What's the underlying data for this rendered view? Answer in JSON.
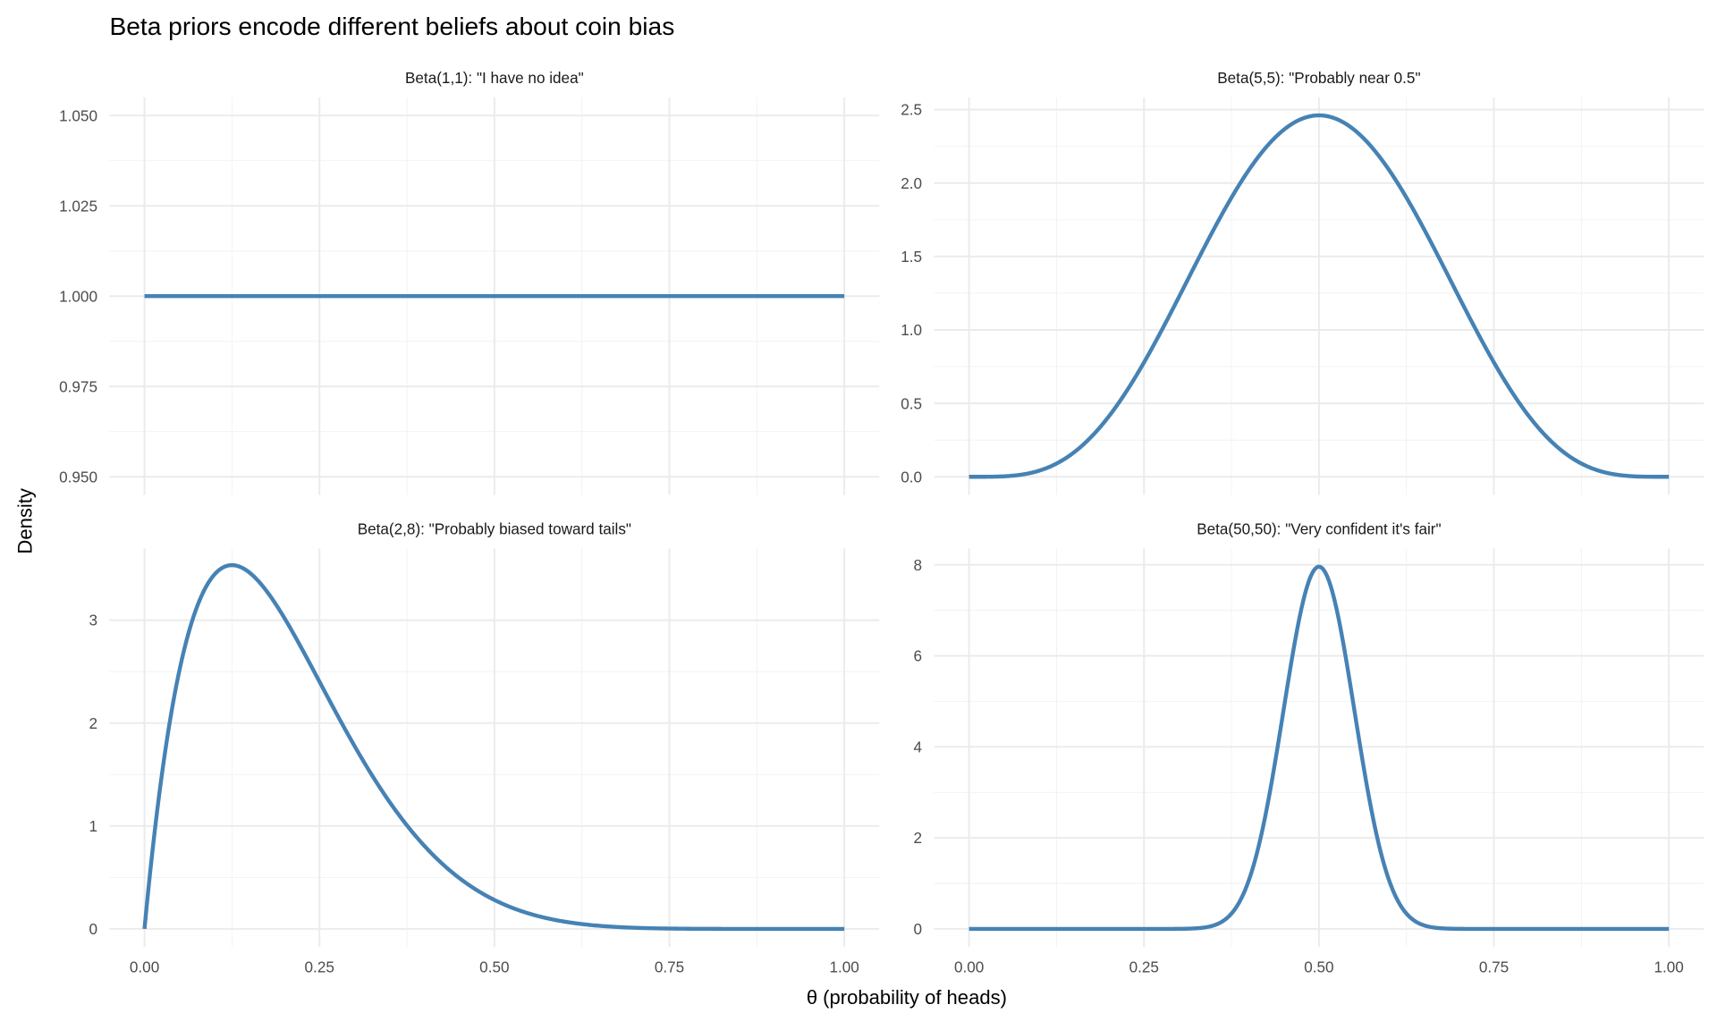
{
  "chart_data": {
    "type": "line",
    "title": "Beta priors encode different beliefs about coin bias",
    "xlabel": "θ (probability of heads)",
    "ylabel": "Density",
    "grid": true,
    "line_color": "#4682B4",
    "xlim": [
      0,
      1
    ],
    "x_ticks": [
      "0.00",
      "0.25",
      "0.50",
      "0.75",
      "1.00"
    ],
    "x_tick_values": [
      0,
      0.25,
      0.5,
      0.75,
      1
    ],
    "panels": [
      {
        "label": "Beta(1,1): \"I have no idea\"",
        "alpha": 1,
        "beta": 1,
        "ylim": [
          0.95,
          1.05
        ],
        "y_tick_values": [
          0.95,
          0.975,
          1.0,
          1.025,
          1.05
        ],
        "y_ticks": [
          "0.950",
          "0.975",
          "1.000",
          "1.025",
          "1.050"
        ]
      },
      {
        "label": "Beta(5,5): \"Probably near 0.5\"",
        "alpha": 5,
        "beta": 5,
        "ylim": [
          0,
          2.46
        ],
        "y_tick_values": [
          0,
          0.5,
          1,
          1.5,
          2,
          2.5
        ],
        "y_ticks": [
          "0.0",
          "0.5",
          "1.0",
          "1.5",
          "2.0",
          "2.5"
        ]
      },
      {
        "label": "Beta(2,8): \"Probably biased toward tails\"",
        "alpha": 2,
        "beta": 8,
        "ylim": [
          0,
          3.52
        ],
        "y_tick_values": [
          0,
          1,
          2,
          3
        ],
        "y_ticks": [
          "0",
          "1",
          "2",
          "3"
        ]
      },
      {
        "label": "Beta(50,50): \"Very confident it's fair\"",
        "alpha": 50,
        "beta": 50,
        "ylim": [
          0,
          7.96
        ],
        "y_tick_values": [
          0,
          2,
          4,
          6,
          8
        ],
        "y_ticks": [
          "0",
          "2",
          "4",
          "6",
          "8"
        ]
      }
    ]
  }
}
